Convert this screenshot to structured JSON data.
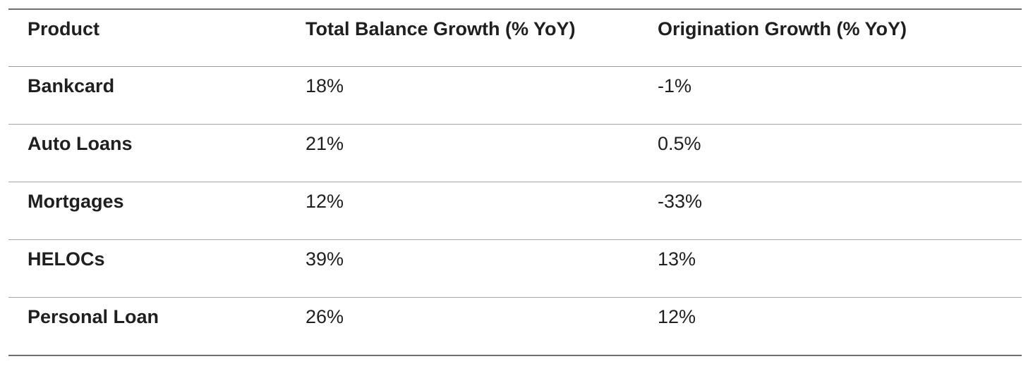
{
  "table": {
    "headers": [
      "Product",
      "Total Balance Growth (% YoY)",
      "Origination Growth (% YoY)"
    ],
    "rows": [
      [
        "Bankcard",
        "18%",
        "-1%"
      ],
      [
        "Auto Loans",
        "21%",
        "0.5%"
      ],
      [
        "Mortgages",
        "12%",
        "-33%"
      ],
      [
        "HELOCs",
        "39%",
        "13%"
      ],
      [
        "Personal Loan",
        "26%",
        "12%"
      ]
    ]
  }
}
